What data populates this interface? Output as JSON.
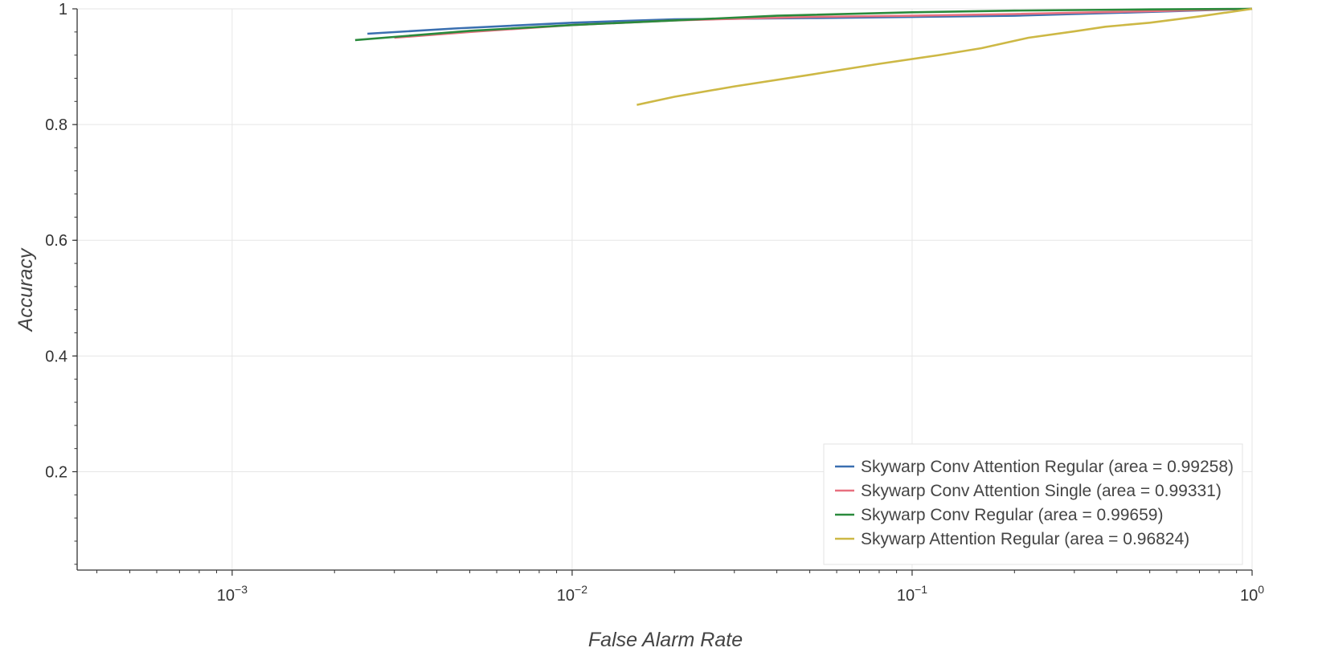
{
  "chart_data": {
    "type": "line",
    "title": "",
    "xlabel": "False Alarm Rate",
    "ylabel": "Accuracy",
    "x_scale": "log",
    "xlim": [
      0.00035,
      1
    ],
    "ylim": [
      0.03,
      1
    ],
    "grid": true,
    "legend_position": "bottom-right",
    "x_ticks": [
      {
        "value": 0.001,
        "base": "10",
        "exp": "−3"
      },
      {
        "value": 0.01,
        "base": "10",
        "exp": "−2"
      },
      {
        "value": 0.1,
        "base": "10",
        "exp": "−1"
      },
      {
        "value": 1,
        "base": "10",
        "exp": "0"
      }
    ],
    "y_ticks": [
      {
        "value": 0.2,
        "label": "0.2"
      },
      {
        "value": 0.4,
        "label": "0.4"
      },
      {
        "value": 0.6,
        "label": "0.6"
      },
      {
        "value": 0.8,
        "label": "0.8"
      },
      {
        "value": 1.0,
        "label": "1"
      }
    ],
    "series": [
      {
        "name": "Skywarp Conv Attention Regular (area = 0.99258)",
        "color": "#3a6fb0",
        "x": [
          0.0025,
          0.0045,
          0.01,
          0.02,
          0.05,
          0.1,
          0.2,
          0.4,
          1.0
        ],
        "y": [
          0.957,
          0.966,
          0.976,
          0.982,
          0.984,
          0.986,
          0.988,
          0.993,
          1.0
        ]
      },
      {
        "name": "Skywarp Conv Attention Single (area = 0.99331)",
        "color": "#e8707f",
        "x": [
          0.003,
          0.005,
          0.01,
          0.02,
          0.05,
          0.1,
          0.2,
          0.5,
          1.0
        ],
        "y": [
          0.95,
          0.96,
          0.972,
          0.98,
          0.986,
          0.988,
          0.991,
          0.996,
          1.0
        ]
      },
      {
        "name": "Skywarp Conv Regular (area = 0.99659)",
        "color": "#2a8a3c",
        "x": [
          0.0023,
          0.005,
          0.01,
          0.02,
          0.04,
          0.1,
          0.2,
          0.5,
          1.0
        ],
        "y": [
          0.946,
          0.962,
          0.972,
          0.98,
          0.988,
          0.994,
          0.997,
          0.999,
          1.0
        ]
      },
      {
        "name": "Skywarp Attention Regular (area = 0.96824)",
        "color": "#cdb845",
        "x": [
          0.0155,
          0.02,
          0.03,
          0.05,
          0.08,
          0.12,
          0.16,
          0.22,
          0.3,
          0.37,
          0.5,
          0.7,
          1.0
        ],
        "y": [
          0.834,
          0.848,
          0.866,
          0.886,
          0.905,
          0.92,
          0.932,
          0.95,
          0.961,
          0.969,
          0.976,
          0.987,
          1.0
        ]
      }
    ]
  }
}
